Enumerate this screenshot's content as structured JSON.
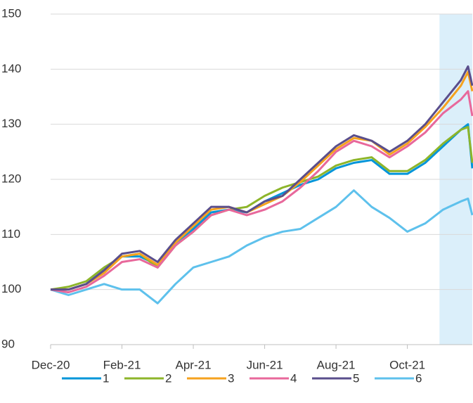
{
  "chart_data": {
    "type": "line",
    "x": [
      0,
      0.5,
      1,
      1.5,
      2,
      2.5,
      3,
      3.5,
      4,
      4.5,
      5,
      5.5,
      6,
      6.5,
      7,
      7.5,
      8,
      8.5,
      9,
      9.5,
      10,
      10.5,
      11,
      11.5,
      11.7,
      11.82
    ],
    "series": [
      {
        "name": "1",
        "color": "#0095d9",
        "values": [
          100,
          100,
          101,
          103.5,
          106,
          106,
          104.5,
          108.5,
          111,
          114,
          114.5,
          114,
          116,
          117.5,
          119,
          120,
          122,
          123,
          123.5,
          121,
          121,
          123,
          126,
          129,
          130,
          122
        ]
      },
      {
        "name": "2",
        "color": "#8db52a",
        "values": [
          100,
          100.5,
          101.5,
          104,
          106,
          106.5,
          104,
          108,
          110.5,
          113.5,
          114.5,
          115,
          117,
          118.5,
          119.5,
          120.5,
          122.5,
          123.5,
          124,
          121.5,
          121.5,
          123.5,
          126.5,
          129,
          129.5,
          123
        ]
      },
      {
        "name": "3",
        "color": "#f5a21e",
        "values": [
          100,
          100,
          101,
          103,
          106,
          106.5,
          104.5,
          108.5,
          111.5,
          114.5,
          115,
          114,
          115.5,
          117,
          119.5,
          122.5,
          125.5,
          127.5,
          127,
          124.5,
          126.5,
          129.5,
          133,
          137,
          139.5,
          136
        ]
      },
      {
        "name": "4",
        "color": "#e8689b",
        "values": [
          100,
          99.5,
          100.5,
          102.5,
          105,
          105.5,
          104,
          108,
          110.5,
          113.5,
          114.5,
          113.5,
          114.5,
          116,
          118.5,
          121.5,
          125,
          127,
          126,
          124,
          126,
          128.5,
          132,
          134.5,
          136,
          131.5
        ]
      },
      {
        "name": "5",
        "color": "#5a4e8c",
        "values": [
          100,
          100,
          101,
          103.5,
          106.5,
          107,
          105,
          109,
          112,
          115,
          115,
          114,
          116,
          117,
          120,
          123,
          126,
          128,
          127,
          125,
          127,
          130,
          134,
          138,
          140.5,
          137
        ]
      },
      {
        "name": "6",
        "color": "#5ec1ec",
        "values": [
          100,
          99,
          100,
          101,
          100,
          100,
          97.5,
          101,
          104,
          105,
          106,
          108,
          109.5,
          110.5,
          111,
          113,
          115,
          118,
          115,
          113,
          110.5,
          112,
          114.5,
          116,
          116.5,
          113.5
        ]
      }
    ],
    "xlim": [
      0,
      11.82
    ],
    "xticks": [
      {
        "value": 0,
        "label": "Dec-20"
      },
      {
        "value": 2,
        "label": "Feb-21"
      },
      {
        "value": 4,
        "label": "Apr-21"
      },
      {
        "value": 6,
        "label": "Jun-21"
      },
      {
        "value": 8,
        "label": "Aug-21"
      },
      {
        "value": 10,
        "label": "Oct-21"
      }
    ],
    "ylim": [
      90,
      150
    ],
    "yticks": [
      90,
      100,
      110,
      120,
      130,
      140,
      150
    ],
    "grid": true,
    "highlight_x": [
      10.9,
      11.82
    ],
    "highlight_color": "#dbeffa",
    "legend": "bottom"
  }
}
